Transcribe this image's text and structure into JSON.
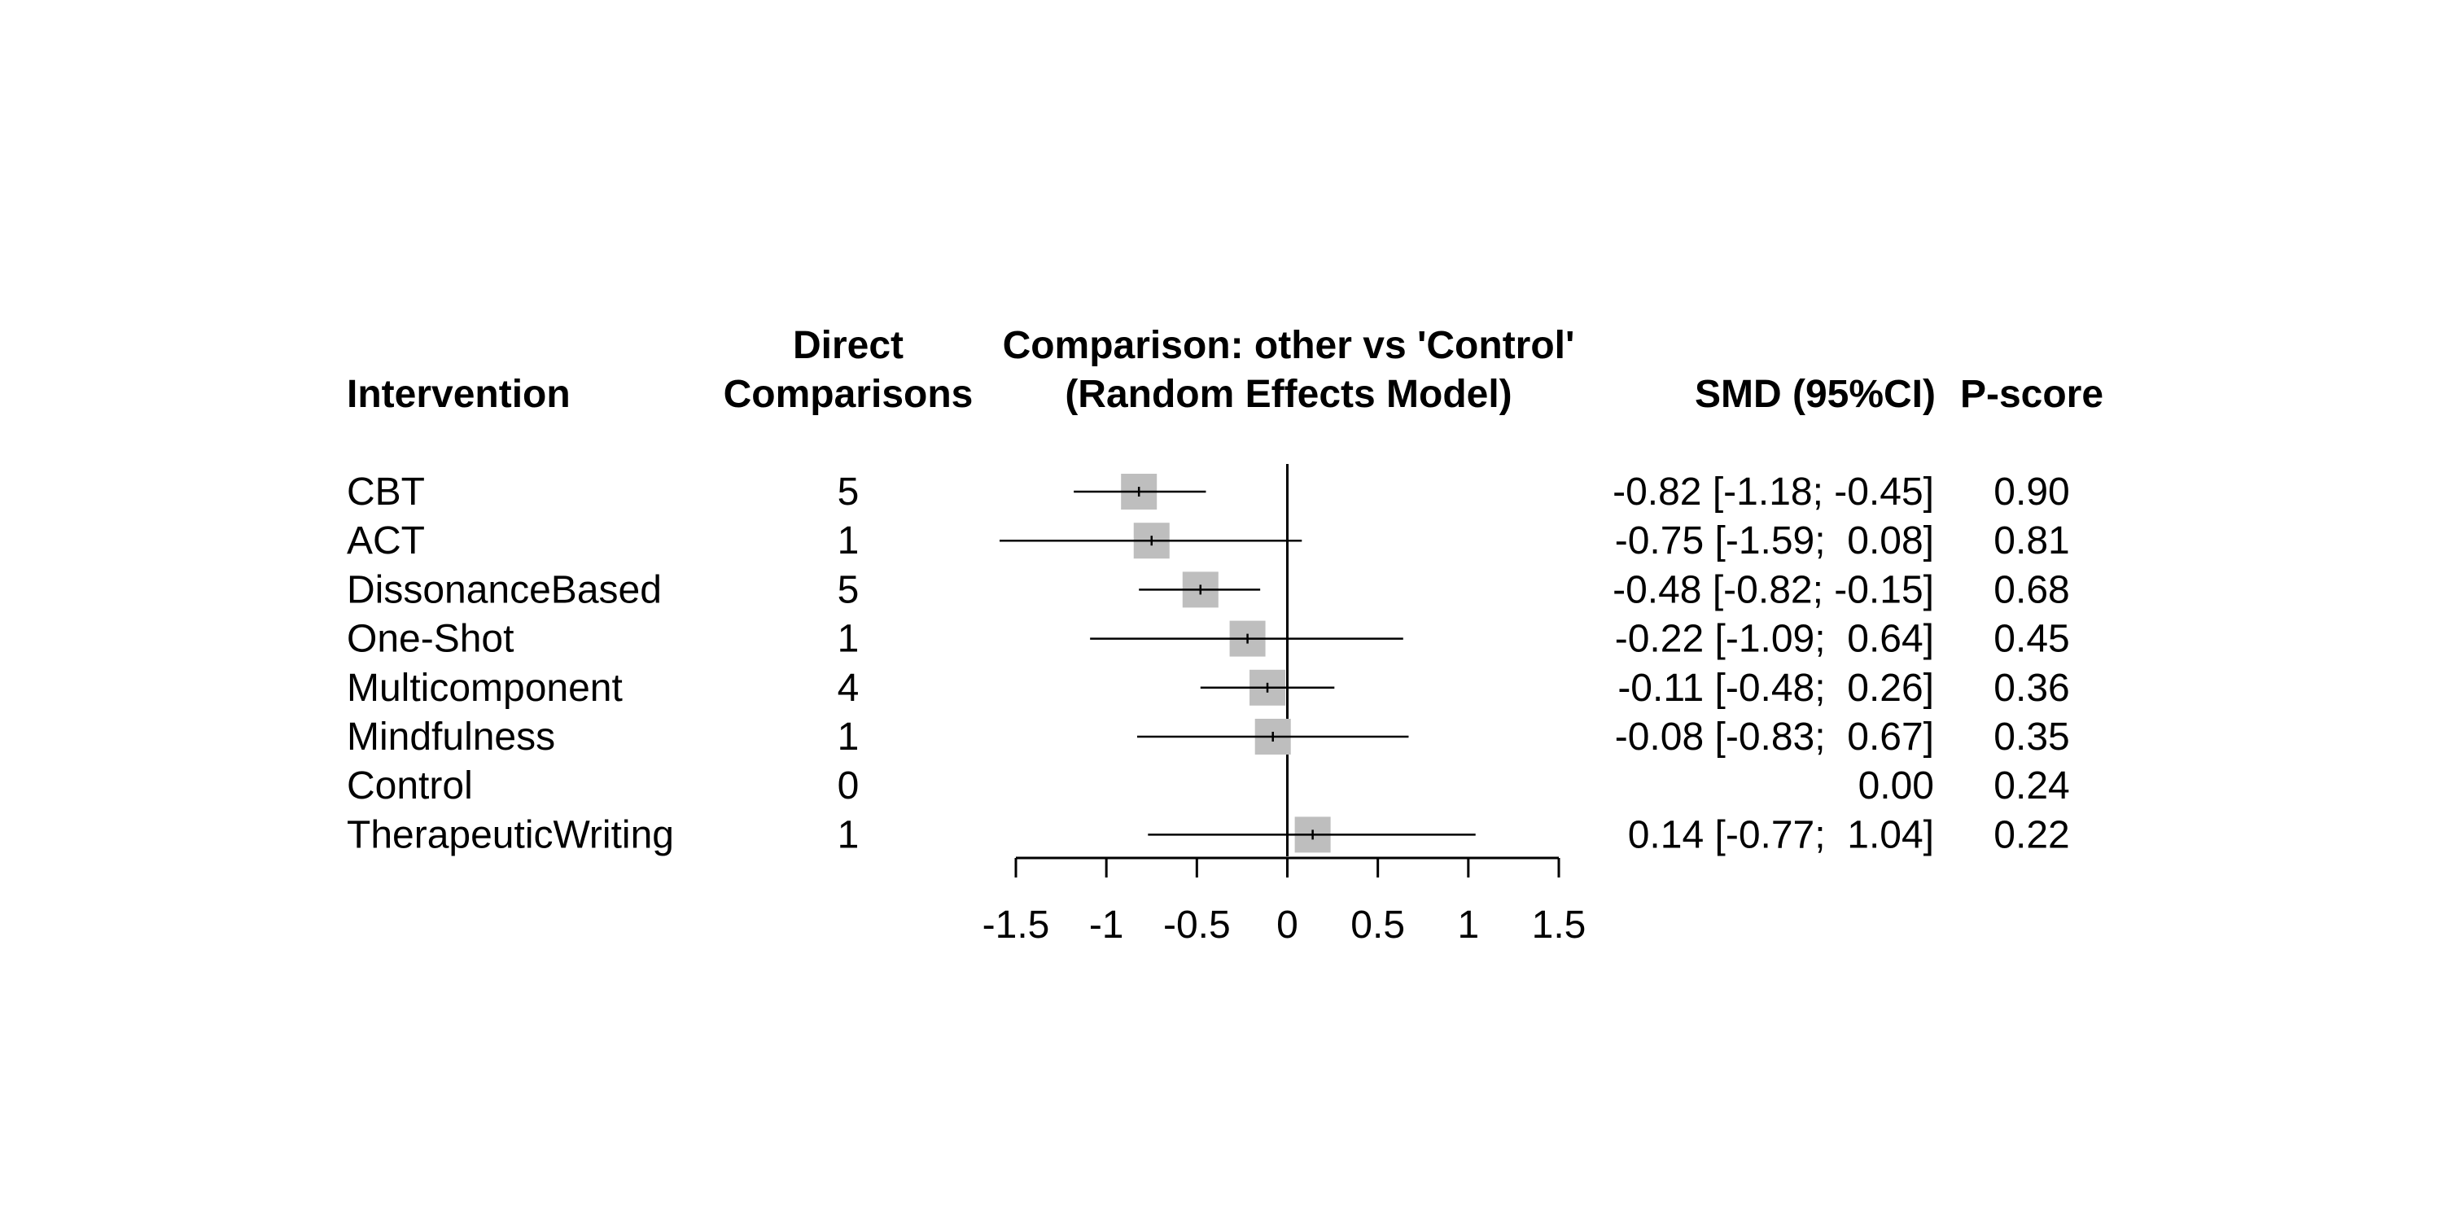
{
  "colors": {
    "square": "#bebebe",
    "line": "#000000",
    "background": "#ffffff"
  },
  "headers": {
    "intervention": "Intervention",
    "direct_line1": "Direct",
    "direct_line2": "Comparisons",
    "comparison_line1": "Comparison: other vs 'Control'",
    "comparison_line2": "(Random Effects Model)",
    "smd": "SMD (95%CI)",
    "pscore": "P-score"
  },
  "rows": [
    {
      "name": "CBT",
      "direct": "5",
      "ci_text": "-0.82 [-1.18; -0.45]",
      "pscore": "0.90"
    },
    {
      "name": "ACT",
      "direct": "1",
      "ci_text": "-0.75 [-1.59;  0.08]",
      "pscore": "0.81"
    },
    {
      "name": "DissonanceBased",
      "direct": "5",
      "ci_text": "-0.48 [-0.82; -0.15]",
      "pscore": "0.68"
    },
    {
      "name": "One-Shot",
      "direct": "1",
      "ci_text": "-0.22 [-1.09;  0.64]",
      "pscore": "0.45"
    },
    {
      "name": "Multicomponent",
      "direct": "4",
      "ci_text": "-0.11 [-0.48;  0.26]",
      "pscore": "0.36"
    },
    {
      "name": "Mindfulness",
      "direct": "1",
      "ci_text": "-0.08 [-0.83;  0.67]",
      "pscore": "0.35"
    },
    {
      "name": "Control",
      "direct": "0",
      "ci_text": "0.00",
      "pscore": "0.24"
    },
    {
      "name": "TherapeuticWriting",
      "direct": "1",
      "ci_text": "0.14 [-0.77;  1.04]",
      "pscore": "0.22"
    }
  ],
  "chart_data": {
    "type": "forest",
    "reference_value": 0,
    "xlim": [
      -1.5,
      1.5
    ],
    "x_ticks": [
      -1.5,
      -1,
      -0.5,
      0,
      0.5,
      1,
      1.5
    ],
    "x_tick_labels": [
      "-1.5",
      "-1",
      "-0.5",
      "0",
      "0.5",
      "1",
      "1.5"
    ],
    "categories": [
      "CBT",
      "ACT",
      "DissonanceBased",
      "One-Shot",
      "Multicomponent",
      "Mindfulness",
      "Control",
      "TherapeuticWriting"
    ],
    "estimates": [
      -0.82,
      -0.75,
      -0.48,
      -0.22,
      -0.11,
      -0.08,
      0.0,
      0.14
    ],
    "ci_lower": [
      -1.18,
      -1.59,
      -0.82,
      -1.09,
      -0.48,
      -0.83,
      null,
      -0.77
    ],
    "ci_upper": [
      -0.45,
      0.08,
      -0.15,
      0.64,
      0.26,
      0.67,
      null,
      1.04
    ],
    "direct_comparisons": [
      5,
      1,
      5,
      1,
      4,
      1,
      0,
      1
    ],
    "p_scores": [
      0.9,
      0.81,
      0.68,
      0.45,
      0.36,
      0.35,
      0.24,
      0.22
    ]
  }
}
